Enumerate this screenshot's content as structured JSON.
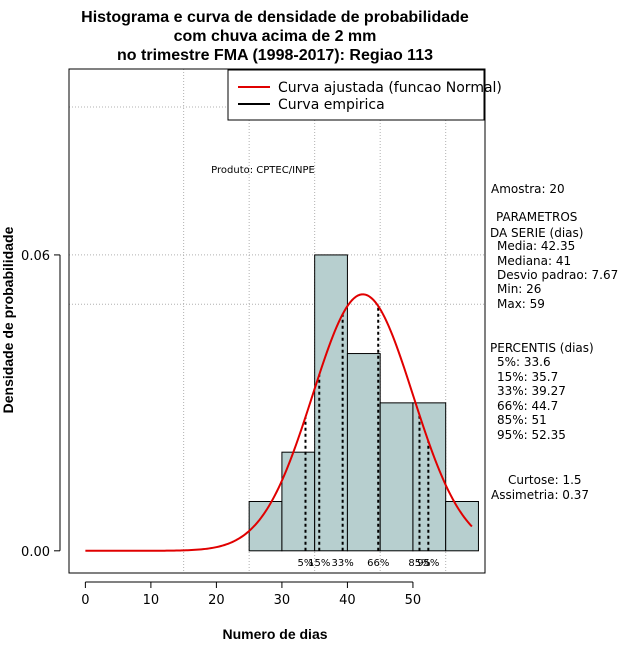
{
  "chart_data": {
    "type": "bar",
    "title_lines": [
      "Histograma e curva de densidade de probabilidade",
      "com chuva acima de 2 mm",
      "no trimestre FMA (1998-2017): Regiao 113"
    ],
    "xlabel": "Numero de dias",
    "ylabel": "Densidade de probabilidade",
    "xlim": [
      -2.5,
      61
    ],
    "ylim": [
      -0.0045,
      0.0977
    ],
    "x_ticks": [
      0,
      10,
      20,
      30,
      40,
      50
    ],
    "x_tick_labels": [
      "0",
      "10",
      "20",
      "30",
      "40",
      "50"
    ],
    "y_ticks": [
      0.0,
      0.06
    ],
    "y_tick_labels": [
      "0.00",
      "0.06"
    ],
    "grid_y": [
      0.06,
      0.05,
      0.09
    ],
    "grid_x": [
      15,
      25,
      35,
      45,
      55
    ],
    "bins": [
      {
        "from": 25,
        "to": 30,
        "density": 0.01
      },
      {
        "from": 30,
        "to": 35,
        "density": 0.02
      },
      {
        "from": 35,
        "to": 40,
        "density": 0.06
      },
      {
        "from": 40,
        "to": 45,
        "density": 0.04
      },
      {
        "from": 45,
        "to": 50,
        "density": 0.03
      },
      {
        "from": 50,
        "to": 55,
        "density": 0.03
      },
      {
        "from": 55,
        "to": 60,
        "density": 0.01
      }
    ],
    "normal_fit": {
      "mean": 42.35,
      "sd": 7.67,
      "x_from": 0,
      "x_to": 59,
      "color": "#e00000"
    },
    "bar_fill": "#b7cfcf",
    "legend": {
      "placement": "top-right",
      "entries": [
        {
          "label": "Curva ajustada (funcao Normal)",
          "color": "#e00000"
        },
        {
          "label": "Curva empirica",
          "color": "#000000"
        }
      ]
    },
    "percentiles": [
      {
        "label": "5%",
        "value": 33.6
      },
      {
        "label": "15%",
        "value": 35.7
      },
      {
        "label": "33%",
        "value": 39.27
      },
      {
        "label": "66%",
        "value": 44.7
      },
      {
        "label": "85%",
        "value": 51
      },
      {
        "label": "95%",
        "value": 52.35
      }
    ],
    "product_note": "Produto: CPTEC/INPE"
  },
  "stats_panel": {
    "amostra": "Amostra: 20",
    "parametros_heading_1": "PARAMETROS",
    "parametros_heading_2": "DA SERIE (dias)",
    "media": "Media: 42.35",
    "mediana": "Mediana: 41",
    "desvio": "Desvio padrao: 7.67",
    "min": "Min: 26",
    "max": "Max: 59",
    "percentis_heading": "PERCENTIS (dias)",
    "p5": "5%: 33.6",
    "p15": "15%: 35.7",
    "p33": "33%: 39.27",
    "p66": "66%: 44.7",
    "p85": "85%: 51",
    "p95": "95%: 52.35",
    "curtose": "Curtose: 1.5",
    "assimetria": "Assimetria: 0.37"
  }
}
